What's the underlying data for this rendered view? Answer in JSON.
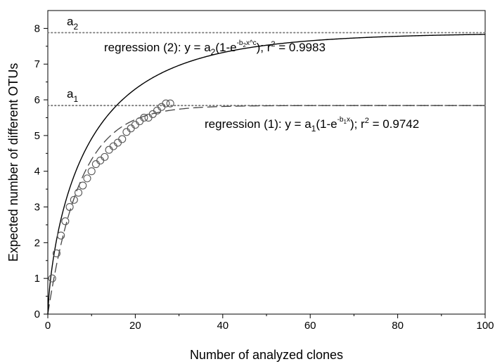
{
  "chart_data": {
    "type": "scatter",
    "title": "",
    "xlabel": "Number of analyzed clones",
    "ylabel": "Expected number of different OTUs",
    "xlim": [
      0,
      100
    ],
    "ylim": [
      0,
      8.5
    ],
    "xticks": [
      0,
      20,
      40,
      60,
      80,
      100
    ],
    "yticks": [
      0,
      1,
      2,
      3,
      4,
      5,
      6,
      7,
      8
    ],
    "grid": false,
    "legend": "none",
    "observed": {
      "marker": "open-circle",
      "x": [
        1,
        2,
        3,
        4,
        5,
        6,
        7,
        8,
        9,
        10,
        11,
        12,
        13,
        14,
        15,
        16,
        17,
        18,
        19,
        20,
        21,
        22,
        23,
        24,
        25,
        26,
        27,
        28
      ],
      "y": [
        1.0,
        1.7,
        2.2,
        2.6,
        3.0,
        3.2,
        3.4,
        3.6,
        3.8,
        4.0,
        4.2,
        4.3,
        4.4,
        4.6,
        4.7,
        4.8,
        4.9,
        5.1,
        5.2,
        5.3,
        5.4,
        5.5,
        5.5,
        5.6,
        5.7,
        5.8,
        5.9,
        5.9
      ]
    },
    "regression_1": {
      "style": "dashed",
      "a": 5.84,
      "b": 0.135,
      "label_prefix": "regression (1): y = a",
      "label_sub1": "1",
      "label_mid": "(1-e",
      "label_sup": "-b",
      "label_sup_sub": "1",
      "label_sup_end": "x",
      "label_end": "); r",
      "label_r2_sup": "2",
      "label_r2_value": " = 0.9742"
    },
    "regression_2": {
      "style": "solid",
      "a": 7.88,
      "b": 0.186,
      "c": 0.72,
      "label_prefix": "regression (2): y = a",
      "label_sub1": "2",
      "label_mid": "(1-e",
      "label_sup": "-b",
      "label_sup_sub": "2",
      "label_sup_end": "x^c",
      "label_end": "); r",
      "label_r2_sup": "2",
      "label_r2_value": " =  0.9983"
    },
    "asymptotes": [
      {
        "label": "a",
        "sub": "1",
        "value": 5.84,
        "style": "dotted"
      },
      {
        "label": "a",
        "sub": "2",
        "value": 7.88,
        "style": "dotted"
      }
    ]
  }
}
